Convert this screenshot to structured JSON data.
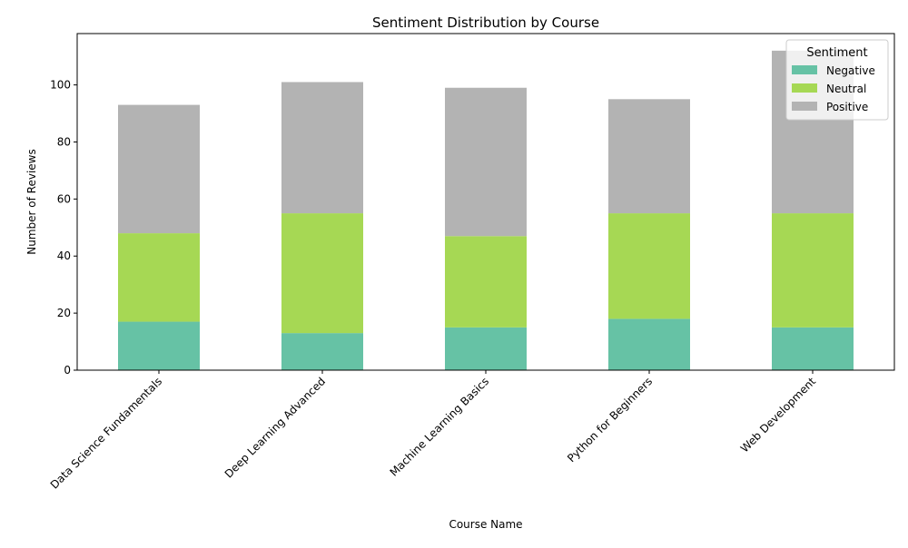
{
  "chart_data": {
    "type": "bar",
    "stacked": true,
    "title": "Sentiment Distribution by Course",
    "xlabel": "Course Name",
    "ylabel": "Number of Reviews",
    "categories": [
      "Data Science Fundamentals",
      "Deep Learning Advanced",
      "Machine Learning Basics",
      "Python for Beginners",
      "Web Development"
    ],
    "series": [
      {
        "name": "Negative",
        "color": "#66c2a5",
        "values": [
          17,
          13,
          15,
          18,
          15
        ]
      },
      {
        "name": "Neutral",
        "color": "#a6d854",
        "values": [
          31,
          42,
          32,
          37,
          40
        ]
      },
      {
        "name": "Positive",
        "color": "#b3b3b3",
        "values": [
          45,
          46,
          52,
          40,
          57
        ]
      }
    ],
    "ylim": [
      0,
      118
    ],
    "yticks": [
      0,
      20,
      40,
      60,
      80,
      100
    ],
    "grid": false,
    "legend": {
      "title": "Sentiment",
      "placement": "top-right"
    }
  }
}
